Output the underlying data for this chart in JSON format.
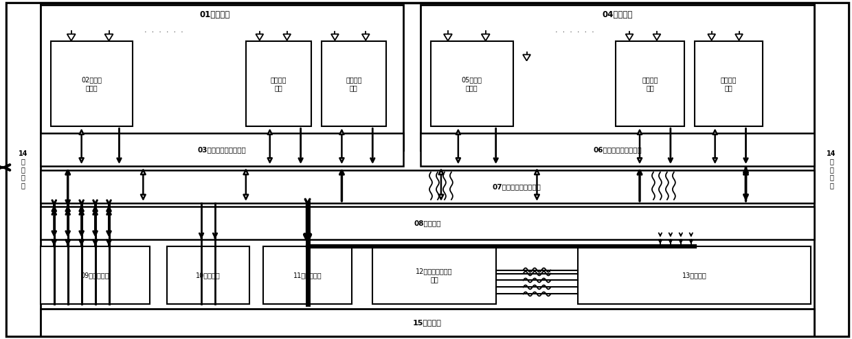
{
  "fig_width": 12.4,
  "fig_height": 4.94,
  "label_14": "14\n热\n控\n系\n统",
  "label_01": "01接收阵面",
  "label_04": "04发射阵面",
  "label_02": "02接收子\n阵模块",
  "label_05": "05发射子\n阵模块",
  "label_rx_sub1": "接收子阵\n模块",
  "label_rx_sub2": "接收子阵\n模块",
  "label_tx_sub1": "发射子阵\n模块",
  "label_tx_sub2": "发射子阵\n模块",
  "label_03": "03接收阵面综合走线层",
  "label_06": "06发射阵面综合走线层",
  "label_07": "07综合信息一体化平台",
  "label_08": "08供配电层",
  "label_09": "09分布式电源",
  "label_10": "10惯性系统",
  "label_11": "11跟踪接收机",
  "label_12": "12状态监测与监控\n管控",
  "label_13": "13卫通终端",
  "label_15": "15支撑底座"
}
